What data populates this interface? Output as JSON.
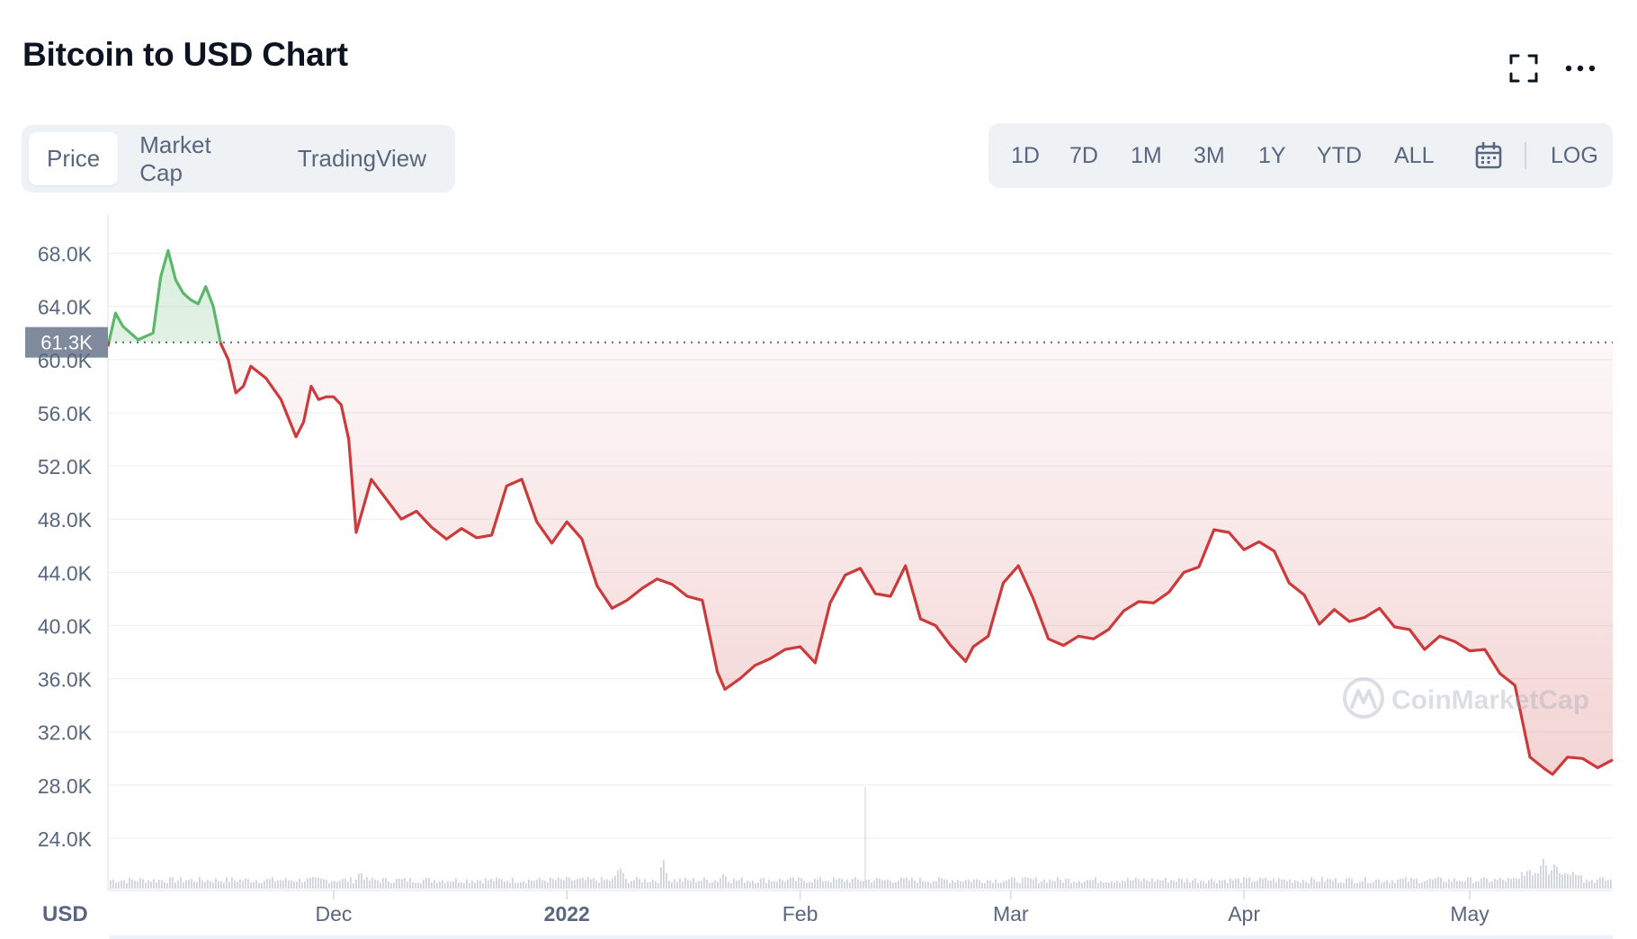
{
  "header": {
    "title": "Bitcoin to USD Chart",
    "fullscreen_icon": "expand-icon",
    "more_icon": "ellipsis-icon"
  },
  "tabs": [
    {
      "label": "Price",
      "active": true
    },
    {
      "label": "Market Cap",
      "active": false
    },
    {
      "label": "TradingView",
      "active": false
    }
  ],
  "ranges": {
    "items": [
      "1D",
      "7D",
      "1M",
      "3M",
      "1Y",
      "YTD",
      "ALL"
    ],
    "calendar_icon": "calendar-icon",
    "log_label": "LOG"
  },
  "watermark": "CoinMarketCap",
  "colors": {
    "up": "#5cb76b",
    "down": "#cc3b3b",
    "grid": "#eef0f3",
    "axis_text": "#58667e",
    "reference_badge": "#808a9d"
  },
  "chart_data": {
    "type": "line",
    "title": "Bitcoin to USD Chart",
    "currency_label": "USD",
    "reference_price_label": "61.3K",
    "reference_price": 61300,
    "y_ticks": [
      "24.0K",
      "28.0K",
      "32.0K",
      "36.0K",
      "40.0K",
      "44.0K",
      "48.0K",
      "52.0K",
      "56.0K",
      "60.0K",
      "64.0K",
      "68.0K"
    ],
    "ylim": [
      21000,
      71000
    ],
    "x_ticks": [
      "Dec",
      "2022",
      "Feb",
      "Mar",
      "Apr",
      "May"
    ],
    "x_tick_dates": [
      "2021-12-01",
      "2022-01-01",
      "2022-02-01",
      "2022-03-01",
      "2022-04-01",
      "2022-05-01"
    ],
    "x_range": [
      "2021-11-01",
      "2022-05-20"
    ],
    "grid": true,
    "series": [
      {
        "x": [
          "2021-11-01",
          "2021-11-02",
          "2021-11-03",
          "2021-11-05",
          "2021-11-07",
          "2021-11-08",
          "2021-11-09",
          "2021-11-10",
          "2021-11-11",
          "2021-11-12",
          "2021-11-13",
          "2021-11-14",
          "2021-11-15",
          "2021-11-16",
          "2021-11-17",
          "2021-11-18",
          "2021-11-19",
          "2021-11-20",
          "2021-11-22",
          "2021-11-24",
          "2021-11-26",
          "2021-11-27",
          "2021-11-28",
          "2021-11-29",
          "2021-11-30",
          "2021-12-01",
          "2021-12-02",
          "2021-12-03",
          "2021-12-04",
          "2021-12-05",
          "2021-12-06",
          "2021-12-08",
          "2021-12-10",
          "2021-12-12",
          "2021-12-14",
          "2021-12-16",
          "2021-12-18",
          "2021-12-20",
          "2021-12-22",
          "2021-12-24",
          "2021-12-26",
          "2021-12-28",
          "2021-12-30",
          "2022-01-01",
          "2022-01-03",
          "2022-01-05",
          "2022-01-07",
          "2022-01-09",
          "2022-01-11",
          "2022-01-13",
          "2022-01-15",
          "2022-01-17",
          "2022-01-19",
          "2022-01-21",
          "2022-01-22",
          "2022-01-24",
          "2022-01-26",
          "2022-01-28",
          "2022-01-30",
          "2022-02-01",
          "2022-02-03",
          "2022-02-05",
          "2022-02-07",
          "2022-02-09",
          "2022-02-11",
          "2022-02-13",
          "2022-02-15",
          "2022-02-17",
          "2022-02-19",
          "2022-02-21",
          "2022-02-23",
          "2022-02-24",
          "2022-02-26",
          "2022-02-28",
          "2022-03-02",
          "2022-03-04",
          "2022-03-06",
          "2022-03-08",
          "2022-03-10",
          "2022-03-12",
          "2022-03-14",
          "2022-03-16",
          "2022-03-18",
          "2022-03-20",
          "2022-03-22",
          "2022-03-24",
          "2022-03-26",
          "2022-03-28",
          "2022-03-30",
          "2022-04-01",
          "2022-04-03",
          "2022-04-05",
          "2022-04-07",
          "2022-04-09",
          "2022-04-11",
          "2022-04-13",
          "2022-04-15",
          "2022-04-17",
          "2022-04-19",
          "2022-04-21",
          "2022-04-23",
          "2022-04-25",
          "2022-04-27",
          "2022-04-29",
          "2022-05-01",
          "2022-05-03",
          "2022-05-05",
          "2022-05-07",
          "2022-05-09",
          "2022-05-11",
          "2022-05-12",
          "2022-05-14",
          "2022-05-16",
          "2022-05-18",
          "2022-05-20"
        ],
        "values": [
          61000,
          63500,
          62500,
          61500,
          62000,
          66200,
          68200,
          66000,
          65000,
          64500,
          64200,
          65500,
          64000,
          61200,
          60000,
          57500,
          58000,
          59500,
          58600,
          57000,
          54200,
          55300,
          58000,
          57000,
          57200,
          57200,
          56600,
          54000,
          47000,
          49000,
          51000,
          49500,
          48000,
          48600,
          47400,
          46500,
          47300,
          46600,
          46800,
          50500,
          51000,
          47800,
          46200,
          47800,
          46500,
          43000,
          41300,
          41900,
          42800,
          43500,
          43100,
          42200,
          41900,
          36500,
          35200,
          36000,
          37000,
          37500,
          38200,
          38400,
          37200,
          41700,
          43800,
          44300,
          42400,
          42200,
          44500,
          40500,
          40000,
          38500,
          37300,
          38400,
          39200,
          43200,
          44500,
          42000,
          39000,
          38500,
          39200,
          39000,
          39700,
          41100,
          41800,
          41700,
          42500,
          44000,
          44400,
          47200,
          47000,
          45700,
          46300,
          45600,
          43200,
          42300,
          40100,
          41200,
          40300,
          40600,
          41300,
          39900,
          39700,
          38200,
          39200,
          38800,
          38100,
          38200,
          36400,
          35500,
          30100,
          29200,
          28800,
          30100,
          30000,
          29300,
          29900
        ]
      }
    ],
    "annotations": []
  }
}
